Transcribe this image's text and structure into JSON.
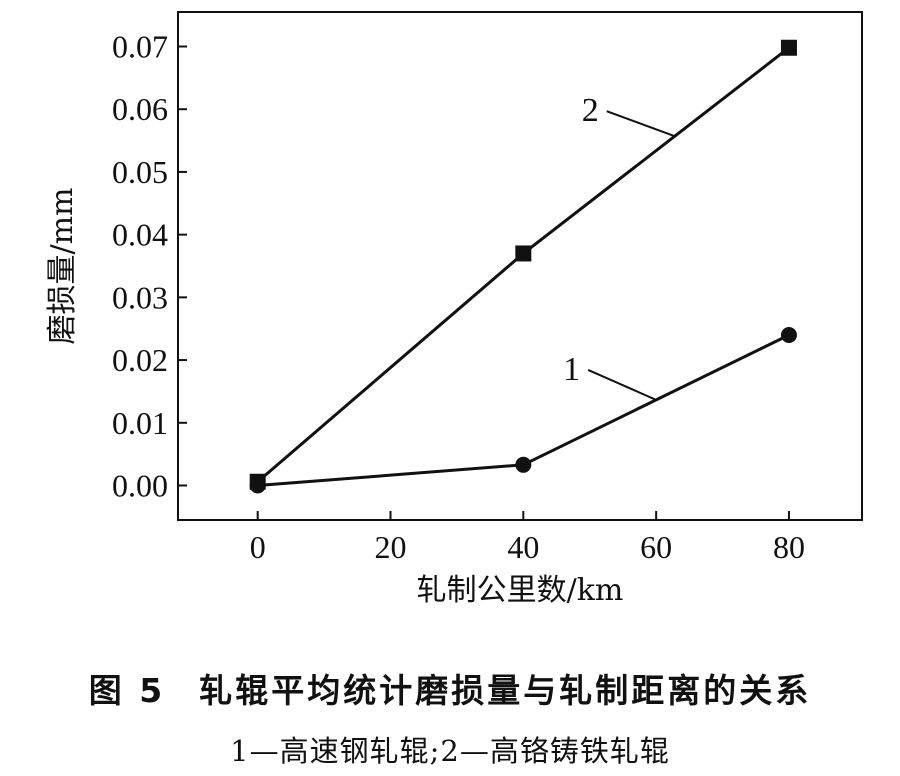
{
  "chart_data": {
    "type": "line",
    "x": [
      0,
      40,
      80
    ],
    "series": [
      {
        "name": "1",
        "marker": "circle",
        "values": [
          0.0,
          0.0033,
          0.024
        ]
      },
      {
        "name": "2",
        "marker": "square",
        "values": [
          0.0006,
          0.037,
          0.0698
        ]
      }
    ],
    "xlabel": "轧制公里数/km",
    "ylabel": "磨损量/mm",
    "xlim": [
      -12,
      91
    ],
    "ylim": [
      -0.0055,
      0.0755
    ],
    "xticks": [
      0,
      20,
      40,
      60,
      80
    ],
    "yticks": [
      0.0,
      0.01,
      0.02,
      0.03,
      0.04,
      0.05,
      0.06,
      0.07
    ],
    "xtick_labels": [
      "0",
      "20",
      "40",
      "60",
      "80"
    ],
    "ytick_labels": [
      "0.00",
      "0.01",
      "0.02",
      "0.03",
      "0.04",
      "0.05",
      "0.06",
      "0.07"
    ],
    "grid": false,
    "colors": {
      "line": "#111111",
      "marker": "#111111"
    }
  },
  "caption": {
    "figure_number": "图 5",
    "title": "轧辊平均统计磨损量与轧制距离的关系",
    "legend_text": "1—高速钢轧辊;2—高铬铸铁轧辊"
  }
}
